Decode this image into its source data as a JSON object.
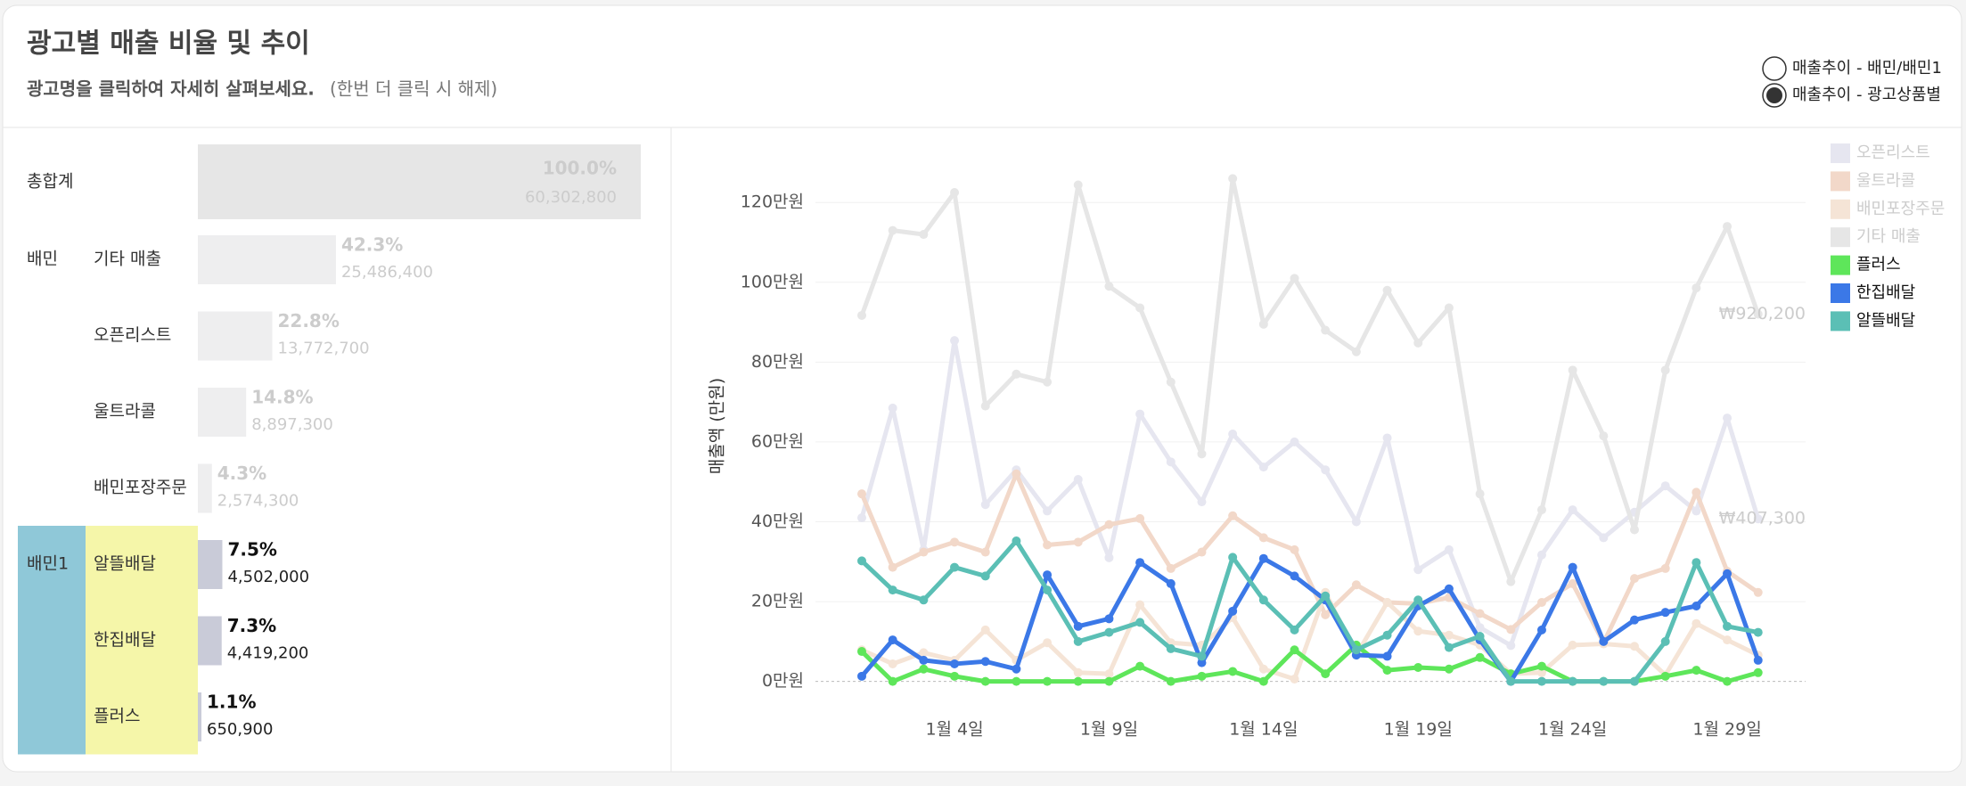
{
  "header": {
    "title": "광고별 매출 비율 및 추이",
    "subtitle": "광고명을 클릭하여 자세히 살펴보세요.",
    "hint": "(한번 더 클릭 시 해제)",
    "options": [
      {
        "label": "매출추이 - 배민/배민1",
        "selected": false
      },
      {
        "label": "매출추이 - 광고상품별",
        "selected": true
      }
    ]
  },
  "summary": {
    "total": {
      "name": "총합계",
      "percent": {
        "value": 100,
        "label": "100.0%"
      },
      "amount": {
        "value": 60302800,
        "label": "60,302,800"
      }
    },
    "groups": [
      {
        "name": "배민",
        "highlight": false,
        "items": [
          {
            "name": "기타 매출",
            "percent": {
              "value": 42.3,
              "label": "42.3%"
            },
            "amount": {
              "value": 25486400,
              "label": "25,486,400"
            }
          },
          {
            "name": "오픈리스트",
            "percent": {
              "value": 22.8,
              "label": "22.8%"
            },
            "amount": {
              "value": 13772700,
              "label": "13,772,700"
            }
          },
          {
            "name": "울트라콜",
            "percent": {
              "value": 14.8,
              "label": "14.8%"
            },
            "amount": {
              "value": 8897300,
              "label": "8,897,300"
            }
          },
          {
            "name": "배민포장주문",
            "percent": {
              "value": 4.3,
              "label": "4.3%"
            },
            "amount": {
              "value": 2574300,
              "label": "2,574,300"
            }
          }
        ]
      },
      {
        "name": "배민1",
        "highlight": true,
        "items": [
          {
            "name": "알뜰배달",
            "percent": {
              "value": 7.5,
              "label": "7.5%"
            },
            "amount": {
              "value": 4502000,
              "label": "4,502,000"
            }
          },
          {
            "name": "한집배달",
            "percent": {
              "value": 7.3,
              "label": "7.3%"
            },
            "amount": {
              "value": 4419200,
              "label": "4,419,200"
            }
          },
          {
            "name": "플러스",
            "percent": {
              "value": 1.1,
              "label": "1.1%"
            },
            "amount": {
              "value": 650900,
              "label": "650,900"
            }
          }
        ]
      }
    ]
  },
  "chart_data": {
    "type": "line",
    "ylabel": "매출액 (만원)",
    "categories": [
      null,
      null,
      null,
      "1월 4일",
      null,
      null,
      null,
      null,
      "1월 9일",
      null,
      null,
      null,
      null,
      "1월 14일",
      null,
      null,
      null,
      null,
      "1월 19일",
      null,
      null,
      null,
      null,
      "1월 24일",
      null,
      null,
      null,
      null,
      "1월 29일",
      null
    ],
    "ylim": [
      -7,
      133
    ],
    "yticks": [
      {
        "value": 0,
        "label": "0만원"
      },
      {
        "value": 20,
        "label": "20만원"
      },
      {
        "value": 40,
        "label": "40만원"
      },
      {
        "value": 60,
        "label": "60만원"
      },
      {
        "value": 80,
        "label": "80만원"
      },
      {
        "value": 100,
        "label": "100만원"
      },
      {
        "value": 120,
        "label": "120만원"
      }
    ],
    "grid": true,
    "legend": "right",
    "series": [
      {
        "name": "오픈리스트",
        "color": "#e6e6f0",
        "selected": false,
        "values": [
          41,
          68.5,
          33,
          85.4,
          44.3,
          53,
          42.7,
          50.6,
          31,
          67,
          55,
          45,
          62,
          53.7,
          60,
          53,
          40,
          61,
          28,
          33,
          13.5,
          9,
          31.7,
          43,
          36,
          42.4,
          49,
          42.7,
          66,
          40.73
        ],
        "value_labels": [
          null,
          null,
          null,
          null,
          null,
          null,
          null,
          null,
          null,
          null,
          null,
          null,
          null,
          null,
          null,
          null,
          null,
          null,
          null,
          null,
          null,
          null,
          null,
          null,
          null,
          null,
          null,
          null,
          null,
          "₩407,300"
        ]
      },
      {
        "name": "울트라콜",
        "color": "#f2d8c9",
        "selected": false,
        "values": [
          47,
          28.6,
          32.4,
          34.9,
          32.4,
          52,
          34.2,
          34.9,
          39.3,
          40.8,
          28.3,
          32.4,
          41.5,
          36,
          33,
          16.7,
          24.2,
          19.8,
          19.5,
          21,
          17,
          13,
          19.8,
          24.5,
          9.7,
          25.8,
          28.3,
          47.4,
          27.6,
          22.3
        ]
      },
      {
        "name": "배민포장주문",
        "color": "#f5e4d6",
        "selected": false,
        "values": [
          7.9,
          4.4,
          7.2,
          5.3,
          12.9,
          5.3,
          9.7,
          2.2,
          1.9,
          19.2,
          9.7,
          9.1,
          16,
          3.1,
          0.6,
          22.3,
          6.6,
          19.8,
          12.6,
          11.6,
          9.1,
          1.9,
          2.2,
          9.1,
          9.4,
          8.8,
          1.6,
          14.5,
          10.4,
          6.6
        ]
      },
      {
        "name": "기타 매출",
        "color": "#e6e6e6",
        "selected": false,
        "values": [
          91.7,
          113,
          112,
          122.5,
          69,
          77,
          75,
          124.4,
          99,
          93.6,
          75,
          57,
          126,
          89.5,
          101,
          88,
          82.6,
          98,
          84.8,
          93.6,
          47,
          25,
          43,
          78,
          61.5,
          38,
          78,
          98.6,
          114,
          92.02
        ],
        "value_labels": [
          null,
          null,
          null,
          null,
          null,
          null,
          null,
          null,
          null,
          null,
          null,
          null,
          null,
          null,
          null,
          null,
          null,
          null,
          null,
          null,
          null,
          null,
          null,
          null,
          null,
          null,
          null,
          null,
          null,
          "₩920,200"
        ]
      },
      {
        "name": "플러스",
        "color": "#5ee65a",
        "selected": true,
        "values": [
          7.5,
          0,
          3.1,
          1.3,
          0,
          0,
          0,
          0,
          0,
          3.8,
          0,
          1.3,
          2.5,
          0,
          7.9,
          1.9,
          9.1,
          2.8,
          3.5,
          3.1,
          6,
          1.9,
          3.8,
          0,
          0,
          0,
          1.3,
          2.8,
          0,
          2.2
        ]
      },
      {
        "name": "한집배달",
        "color": "#3b78e7",
        "selected": true,
        "values": [
          1.3,
          10.4,
          5.3,
          4.4,
          5,
          3.1,
          26.7,
          13.8,
          15.7,
          29.8,
          24.5,
          4.7,
          17.6,
          30.8,
          26.4,
          20.4,
          6.6,
          6.3,
          18.9,
          23.2,
          10.4,
          0,
          12.9,
          28.6,
          10,
          15.4,
          17.3,
          18.9,
          27,
          5.3
        ]
      },
      {
        "name": "알뜰배달",
        "color": "#5bbfb5",
        "selected": true,
        "values": [
          30.2,
          22.9,
          20.4,
          28.6,
          26.4,
          35.2,
          22.9,
          10,
          12.3,
          14.8,
          8.2,
          6.3,
          31.1,
          20.4,
          12.9,
          21.4,
          7.9,
          11.6,
          20.4,
          8.5,
          11.3,
          0,
          0,
          0,
          0,
          0,
          10,
          29.8,
          13.8,
          12.3
        ]
      }
    ]
  }
}
